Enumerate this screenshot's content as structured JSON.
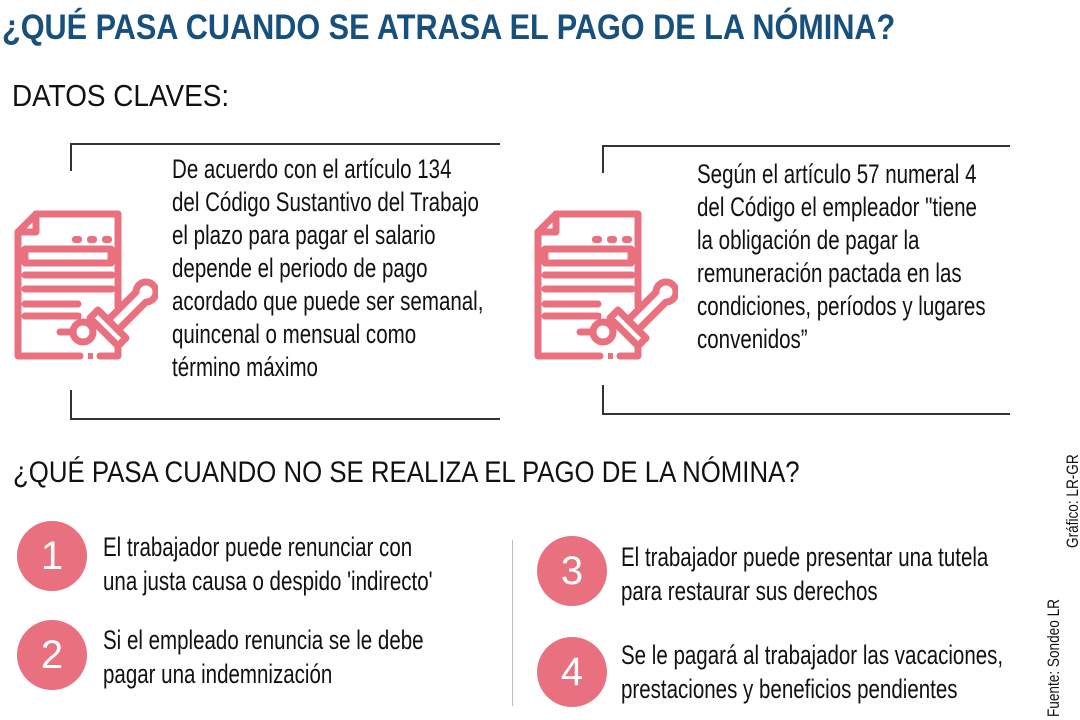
{
  "title": "¿QUÉ PASA CUANDO SE ATRASA EL PAGO DE LA NÓMINA?",
  "key_facts": {
    "heading": "DATOS CLAVES:",
    "cards": [
      {
        "icon": "document-stamp-icon",
        "lines": [
          "De acuerdo con el artículo 134",
          "del Código Sustantivo del Trabajo",
          "el plazo para pagar el salario",
          "depende el periodo de pago",
          "acordado que puede ser semanal,",
          "quincenal o mensual como",
          "término máximo"
        ]
      },
      {
        "icon": "document-stamp-icon",
        "lines": [
          "Según el artículo 57 numeral 4",
          "del Código el empleador \"tiene",
          "la obligación de pagar la",
          "remuneración pactada en las",
          "condiciones, períodos y lugares",
          "convenidos”"
        ]
      }
    ]
  },
  "consequences": {
    "heading": "¿QUÉ PASA CUANDO NO SE REALIZA EL PAGO DE LA NÓMINA?",
    "items": [
      {
        "number": "1",
        "lines": [
          "El trabajador puede renunciar con",
          "una justa causa o despido 'indirecto'"
        ]
      },
      {
        "number": "2",
        "lines": [
          "Si el empleado renuncia se le debe",
          "pagar una indemnización"
        ]
      },
      {
        "number": "3",
        "lines": [
          "El trabajador puede presentar una tutela",
          "para restaurar sus derechos"
        ]
      },
      {
        "number": "4",
        "lines": [
          "Se le pagará al trabajador las vacaciones,",
          "prestaciones y beneficios pendientes"
        ]
      }
    ]
  },
  "credits": {
    "source": "Fuente: Sondeo LR",
    "graphic": "Gráfico: LR-GR"
  },
  "colors": {
    "title": "#17507c",
    "accent": "#e9707e"
  }
}
